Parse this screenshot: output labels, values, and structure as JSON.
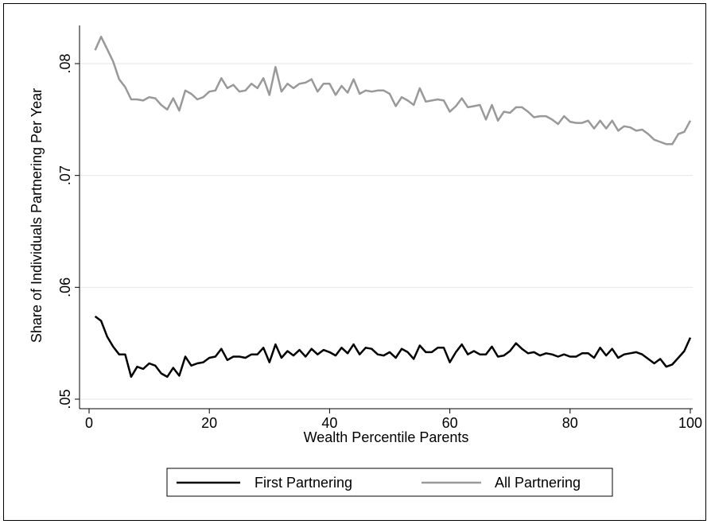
{
  "chart_data": {
    "type": "line",
    "title": "",
    "xlabel": "Wealth Percentile Parents",
    "ylabel": "Share of Individuals Partnering Per Year",
    "xlim": [
      1,
      100
    ],
    "ylim": [
      0.05,
      0.083
    ],
    "x_ticks": [
      0,
      20,
      40,
      60,
      80,
      100
    ],
    "y_ticks": [
      0.05,
      0.06,
      0.07,
      0.08
    ],
    "x_tick_labels": [
      "0",
      "20",
      "40",
      "60",
      "80",
      "100"
    ],
    "y_tick_labels": [
      ".05",
      ".06",
      ".07",
      ".08"
    ],
    "grid": "horizontal",
    "legend_position": "bottom",
    "series": [
      {
        "name": "First Partnering",
        "color": "#000000",
        "x": [
          1,
          2,
          3,
          4,
          5,
          6,
          7,
          8,
          9,
          10,
          11,
          12,
          13,
          14,
          15,
          16,
          17,
          18,
          19,
          20,
          21,
          22,
          23,
          24,
          25,
          26,
          27,
          28,
          29,
          30,
          31,
          32,
          33,
          34,
          35,
          36,
          37,
          38,
          39,
          40,
          41,
          42,
          43,
          44,
          45,
          46,
          47,
          48,
          49,
          50,
          51,
          52,
          53,
          54,
          55,
          56,
          57,
          58,
          59,
          60,
          61,
          62,
          63,
          64,
          65,
          66,
          67,
          68,
          69,
          70,
          71,
          72,
          73,
          74,
          75,
          76,
          77,
          78,
          79,
          80,
          81,
          82,
          83,
          84,
          85,
          86,
          87,
          88,
          89,
          90,
          91,
          92,
          93,
          94,
          95,
          96,
          97,
          98,
          99,
          100
        ],
        "values": [
          0.0574,
          0.057,
          0.0556,
          0.0547,
          0.054,
          0.054,
          0.052,
          0.0529,
          0.0527,
          0.0532,
          0.053,
          0.0523,
          0.052,
          0.0528,
          0.0521,
          0.0538,
          0.053,
          0.0532,
          0.0533,
          0.0537,
          0.0538,
          0.0545,
          0.0535,
          0.0538,
          0.0538,
          0.0537,
          0.054,
          0.054,
          0.0546,
          0.0533,
          0.0549,
          0.0537,
          0.0543,
          0.0539,
          0.0544,
          0.0538,
          0.0545,
          0.054,
          0.0544,
          0.0542,
          0.0539,
          0.0546,
          0.0541,
          0.0549,
          0.054,
          0.0546,
          0.0545,
          0.054,
          0.0539,
          0.0542,
          0.0537,
          0.0545,
          0.0542,
          0.0536,
          0.0548,
          0.0542,
          0.0542,
          0.0546,
          0.0546,
          0.0533,
          0.0542,
          0.0549,
          0.054,
          0.0543,
          0.054,
          0.054,
          0.0547,
          0.0538,
          0.0539,
          0.0543,
          0.055,
          0.0545,
          0.0541,
          0.0542,
          0.0539,
          0.0541,
          0.054,
          0.0538,
          0.054,
          0.0538,
          0.0538,
          0.0541,
          0.0541,
          0.0537,
          0.0546,
          0.0539,
          0.0545,
          0.0537,
          0.054,
          0.0541,
          0.0542,
          0.054,
          0.0536,
          0.0532,
          0.0536,
          0.0529,
          0.0531,
          0.0537,
          0.0543,
          0.0555
        ]
      },
      {
        "name": "All Partnering",
        "color": "#999999",
        "x": [
          1,
          2,
          3,
          4,
          5,
          6,
          7,
          8,
          9,
          10,
          11,
          12,
          13,
          14,
          15,
          16,
          17,
          18,
          19,
          20,
          21,
          22,
          23,
          24,
          25,
          26,
          27,
          28,
          29,
          30,
          31,
          32,
          33,
          34,
          35,
          36,
          37,
          38,
          39,
          40,
          41,
          42,
          43,
          44,
          45,
          46,
          47,
          48,
          49,
          50,
          51,
          52,
          53,
          54,
          55,
          56,
          57,
          58,
          59,
          60,
          61,
          62,
          63,
          64,
          65,
          66,
          67,
          68,
          69,
          70,
          71,
          72,
          73,
          74,
          75,
          76,
          77,
          78,
          79,
          80,
          81,
          82,
          83,
          84,
          85,
          86,
          87,
          88,
          89,
          90,
          91,
          92,
          93,
          94,
          95,
          96,
          97,
          98,
          99,
          100
        ],
        "values": [
          0.0812,
          0.0824,
          0.0813,
          0.0802,
          0.0786,
          0.0779,
          0.0768,
          0.0768,
          0.0767,
          0.077,
          0.0769,
          0.0763,
          0.0759,
          0.0769,
          0.0758,
          0.0776,
          0.0773,
          0.0768,
          0.077,
          0.0775,
          0.0776,
          0.0787,
          0.0778,
          0.0781,
          0.0775,
          0.0776,
          0.0782,
          0.0778,
          0.0787,
          0.0772,
          0.0797,
          0.0775,
          0.0782,
          0.0778,
          0.0782,
          0.0783,
          0.0786,
          0.0775,
          0.0782,
          0.0782,
          0.0772,
          0.078,
          0.0774,
          0.0786,
          0.0773,
          0.0776,
          0.0775,
          0.0776,
          0.0776,
          0.0773,
          0.0762,
          0.077,
          0.0767,
          0.0763,
          0.0778,
          0.0766,
          0.0767,
          0.0768,
          0.0767,
          0.0757,
          0.0762,
          0.0769,
          0.0761,
          0.0762,
          0.0763,
          0.075,
          0.0763,
          0.0749,
          0.0757,
          0.0756,
          0.0761,
          0.0761,
          0.0757,
          0.0752,
          0.0753,
          0.0753,
          0.075,
          0.0746,
          0.0753,
          0.0748,
          0.0747,
          0.0747,
          0.0749,
          0.0742,
          0.0749,
          0.0742,
          0.0749,
          0.074,
          0.0744,
          0.0743,
          0.074,
          0.0741,
          0.0737,
          0.0732,
          0.073,
          0.0728,
          0.0728,
          0.0737,
          0.0739,
          0.0749
        ]
      }
    ]
  }
}
